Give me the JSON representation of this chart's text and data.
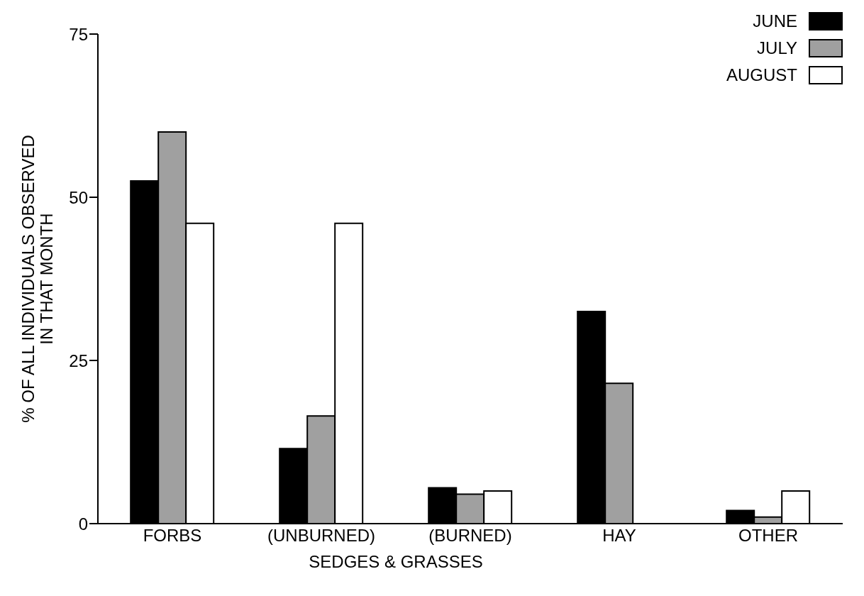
{
  "chart_data": {
    "type": "bar",
    "ylabel": "% OF ALL INDIVIDUALS OBSERVED\nIN THAT MONTH",
    "categories": [
      "FORBS",
      "(UNBURNED)",
      "(BURNED)",
      "HAY",
      "OTHER"
    ],
    "series": [
      {
        "name": "JUNE",
        "color": "#000000",
        "values": [
          52.5,
          11.5,
          5.5,
          32.5,
          2
        ]
      },
      {
        "name": "JULY",
        "color": "#a0a0a0",
        "values": [
          60,
          16.5,
          4.5,
          21.5,
          1
        ]
      },
      {
        "name": "AUGUST",
        "color": "#ffffff",
        "values": [
          46,
          46,
          5,
          0,
          5
        ]
      }
    ],
    "ylim": [
      0,
      75
    ],
    "yticks": [
      0,
      25,
      50,
      75
    ],
    "grid": false,
    "legend": "top right",
    "annotations": [
      "SEDGES & GRASSES"
    ]
  }
}
